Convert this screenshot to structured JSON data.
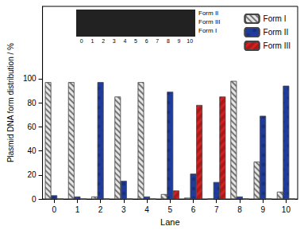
{
  "chart_data": {
    "type": "bar",
    "categories": [
      "0",
      "1",
      "2",
      "3",
      "4",
      "5",
      "6",
      "7",
      "8",
      "9",
      "10"
    ],
    "series": [
      {
        "name": "Form I",
        "color": "#e6e6e6",
        "values": [
          97,
          97,
          2,
          85,
          97,
          4,
          1,
          0,
          98,
          31,
          6
        ]
      },
      {
        "name": "Form II",
        "color": "#1f3c9c",
        "values": [
          3,
          2,
          97,
          15,
          2,
          89,
          21,
          14,
          2,
          69,
          94
        ]
      },
      {
        "name": "Form III",
        "color": "#d42020",
        "values": [
          0,
          0,
          0,
          0,
          0,
          7,
          78,
          85,
          0,
          0,
          0
        ]
      }
    ],
    "xlabel": "Lane",
    "ylabel": "Plasmid DNA form distribution / %",
    "ylim": [
      0,
      160
    ],
    "yticks": [
      0,
      20,
      40,
      60,
      80,
      100
    ],
    "legend": "upper right",
    "annotations": [
      "Form II",
      "Form III",
      "Form I"
    ]
  }
}
